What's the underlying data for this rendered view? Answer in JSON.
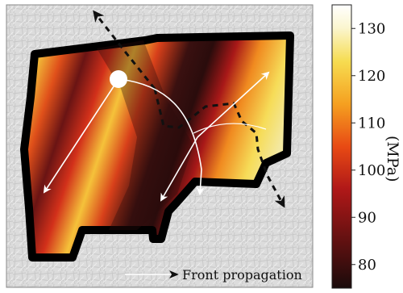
{
  "figure": {
    "legend_label": "Front propagation",
    "colorbar": {
      "unit": "(MPa)",
      "ticks": [
        "130",
        "120",
        "110",
        "100",
        "90",
        "80"
      ],
      "tick_values": [
        130,
        120,
        110,
        100,
        90,
        80
      ],
      "range": [
        75,
        135
      ],
      "colors": [
        "#1a0b0b",
        "#5a1010",
        "#b01818",
        "#e84a14",
        "#f5a020",
        "#f6dc50",
        "#fbf6d0",
        "#ffffff"
      ]
    },
    "colors": {
      "background": "#d9d9d9",
      "boundary": "#000000",
      "arrow_white": "#ffffff",
      "arrow_dashed": "#111111"
    }
  }
}
